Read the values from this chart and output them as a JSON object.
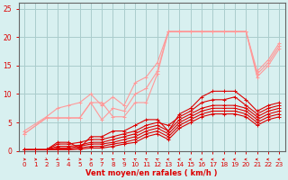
{
  "bg_color": "#d8f0f0",
  "grid_color": "#aacccc",
  "line_color_light": "#ff9999",
  "line_color_dark": "#dd0000",
  "xlabel": "Vent moyen/en rafales ( km/h )",
  "xlabel_color": "#dd0000",
  "tick_color": "#dd0000",
  "axis_color": "#666666",
  "xlim": [
    -0.5,
    23.5
  ],
  "ylim": [
    0,
    26
  ],
  "yticks": [
    0,
    5,
    10,
    15,
    20,
    25
  ],
  "xticks": [
    0,
    1,
    2,
    3,
    4,
    5,
    6,
    7,
    8,
    9,
    10,
    11,
    12,
    13,
    14,
    15,
    16,
    17,
    18,
    19,
    20,
    21,
    22,
    23
  ],
  "light_lines": [
    [
      [
        0,
        3.0
      ],
      [
        2,
        5.8
      ],
      [
        3,
        5.8
      ],
      [
        4,
        5.8
      ],
      [
        5,
        5.8
      ],
      [
        6,
        8.5
      ],
      [
        7,
        8.5
      ],
      [
        8,
        6.0
      ],
      [
        9,
        6.0
      ],
      [
        10,
        8.5
      ],
      [
        11,
        8.5
      ],
      [
        12,
        13.5
      ],
      [
        13,
        21.0
      ],
      [
        14,
        21.0
      ],
      [
        15,
        21.0
      ],
      [
        16,
        21.0
      ],
      [
        17,
        21.0
      ],
      [
        18,
        21.0
      ],
      [
        19,
        21.0
      ],
      [
        20,
        21.0
      ],
      [
        21,
        13.5
      ],
      [
        22,
        15.5
      ],
      [
        23,
        18.5
      ]
    ],
    [
      [
        0,
        3.0
      ],
      [
        2,
        5.8
      ],
      [
        3,
        5.8
      ],
      [
        4,
        5.8
      ],
      [
        5,
        5.8
      ],
      [
        6,
        8.5
      ],
      [
        7,
        5.5
      ],
      [
        8,
        7.5
      ],
      [
        9,
        7.0
      ],
      [
        10,
        10.0
      ],
      [
        11,
        11.0
      ],
      [
        12,
        14.0
      ],
      [
        13,
        21.0
      ],
      [
        14,
        21.0
      ],
      [
        15,
        21.0
      ],
      [
        16,
        21.0
      ],
      [
        17,
        21.0
      ],
      [
        18,
        21.0
      ],
      [
        19,
        21.0
      ],
      [
        20,
        21.0
      ],
      [
        21,
        14.0
      ],
      [
        22,
        16.0
      ],
      [
        23,
        19.0
      ]
    ],
    [
      [
        0,
        3.5
      ],
      [
        2,
        6.0
      ],
      [
        3,
        7.5
      ],
      [
        4,
        8.0
      ],
      [
        5,
        8.5
      ],
      [
        6,
        10.0
      ],
      [
        7,
        8.0
      ],
      [
        8,
        9.5
      ],
      [
        9,
        8.0
      ],
      [
        10,
        12.0
      ],
      [
        11,
        13.0
      ],
      [
        12,
        15.5
      ],
      [
        13,
        21.0
      ],
      [
        14,
        21.0
      ],
      [
        15,
        21.0
      ],
      [
        16,
        21.0
      ],
      [
        17,
        21.0
      ],
      [
        18,
        21.0
      ],
      [
        19,
        21.0
      ],
      [
        20,
        21.0
      ],
      [
        21,
        13.0
      ],
      [
        22,
        15.0
      ],
      [
        23,
        18.0
      ]
    ]
  ],
  "dark_lines": [
    [
      [
        0,
        0.2
      ],
      [
        1,
        0.2
      ],
      [
        2,
        0.2
      ],
      [
        3,
        1.5
      ],
      [
        4,
        1.5
      ],
      [
        5,
        0.5
      ],
      [
        6,
        2.5
      ],
      [
        7,
        2.5
      ],
      [
        8,
        3.5
      ],
      [
        9,
        3.5
      ],
      [
        10,
        4.5
      ],
      [
        11,
        5.5
      ],
      [
        12,
        5.5
      ],
      [
        13,
        3.5
      ],
      [
        14,
        6.5
      ],
      [
        15,
        7.5
      ],
      [
        16,
        9.5
      ],
      [
        17,
        10.5
      ],
      [
        18,
        10.5
      ],
      [
        19,
        10.5
      ],
      [
        20,
        9.0
      ],
      [
        21,
        7.0
      ],
      [
        22,
        8.0
      ],
      [
        23,
        8.5
      ]
    ],
    [
      [
        0,
        0.2
      ],
      [
        1,
        0.2
      ],
      [
        2,
        0.2
      ],
      [
        3,
        1.2
      ],
      [
        4,
        1.2
      ],
      [
        5,
        1.5
      ],
      [
        6,
        2.0
      ],
      [
        7,
        2.0
      ],
      [
        8,
        2.5
      ],
      [
        9,
        3.0
      ],
      [
        10,
        3.5
      ],
      [
        11,
        4.5
      ],
      [
        12,
        5.0
      ],
      [
        13,
        4.5
      ],
      [
        14,
        6.0
      ],
      [
        15,
        7.0
      ],
      [
        16,
        8.5
      ],
      [
        17,
        9.0
      ],
      [
        18,
        9.0
      ],
      [
        19,
        9.5
      ],
      [
        20,
        8.0
      ],
      [
        21,
        6.5
      ],
      [
        22,
        7.5
      ],
      [
        23,
        8.0
      ]
    ],
    [
      [
        0,
        0.2
      ],
      [
        1,
        0.2
      ],
      [
        2,
        0.2
      ],
      [
        3,
        0.8
      ],
      [
        4,
        0.8
      ],
      [
        5,
        1.0
      ],
      [
        6,
        1.5
      ],
      [
        7,
        1.5
      ],
      [
        8,
        2.0
      ],
      [
        9,
        2.5
      ],
      [
        10,
        3.0
      ],
      [
        11,
        4.0
      ],
      [
        12,
        4.5
      ],
      [
        13,
        3.5
      ],
      [
        14,
        5.5
      ],
      [
        15,
        6.5
      ],
      [
        16,
        7.5
      ],
      [
        17,
        8.0
      ],
      [
        18,
        8.0
      ],
      [
        19,
        8.0
      ],
      [
        20,
        7.5
      ],
      [
        21,
        6.0
      ],
      [
        22,
        7.0
      ],
      [
        23,
        7.5
      ]
    ],
    [
      [
        0,
        0.2
      ],
      [
        1,
        0.2
      ],
      [
        2,
        0.2
      ],
      [
        3,
        0.5
      ],
      [
        4,
        0.5
      ],
      [
        5,
        0.8
      ],
      [
        6,
        1.2
      ],
      [
        7,
        1.2
      ],
      [
        8,
        1.5
      ],
      [
        9,
        2.0
      ],
      [
        10,
        2.5
      ],
      [
        11,
        3.5
      ],
      [
        12,
        4.0
      ],
      [
        13,
        3.0
      ],
      [
        14,
        5.0
      ],
      [
        15,
        6.0
      ],
      [
        16,
        7.0
      ],
      [
        17,
        7.5
      ],
      [
        18,
        7.5
      ],
      [
        19,
        7.5
      ],
      [
        20,
        7.0
      ],
      [
        21,
        5.5
      ],
      [
        22,
        6.5
      ],
      [
        23,
        7.0
      ]
    ],
    [
      [
        0,
        0.2
      ],
      [
        1,
        0.2
      ],
      [
        2,
        0.2
      ],
      [
        3,
        0.3
      ],
      [
        4,
        0.3
      ],
      [
        5,
        0.5
      ],
      [
        6,
        0.8
      ],
      [
        7,
        0.8
      ],
      [
        8,
        1.2
      ],
      [
        9,
        1.5
      ],
      [
        10,
        2.0
      ],
      [
        11,
        3.0
      ],
      [
        12,
        3.5
      ],
      [
        13,
        2.5
      ],
      [
        14,
        4.5
      ],
      [
        15,
        5.5
      ],
      [
        16,
        6.5
      ],
      [
        17,
        7.0
      ],
      [
        18,
        7.0
      ],
      [
        19,
        7.0
      ],
      [
        20,
        6.5
      ],
      [
        21,
        5.0
      ],
      [
        22,
        6.0
      ],
      [
        23,
        6.5
      ]
    ],
    [
      [
        0,
        0.2
      ],
      [
        1,
        0.2
      ],
      [
        2,
        0.2
      ],
      [
        3,
        0.2
      ],
      [
        4,
        0.2
      ],
      [
        5,
        0.3
      ],
      [
        6,
        0.5
      ],
      [
        7,
        0.5
      ],
      [
        8,
        0.8
      ],
      [
        9,
        1.2
      ],
      [
        10,
        1.5
      ],
      [
        11,
        2.5
      ],
      [
        12,
        3.0
      ],
      [
        13,
        2.0
      ],
      [
        14,
        4.0
      ],
      [
        15,
        5.0
      ],
      [
        16,
        6.0
      ],
      [
        17,
        6.5
      ],
      [
        18,
        6.5
      ],
      [
        19,
        6.5
      ],
      [
        20,
        6.0
      ],
      [
        21,
        4.5
      ],
      [
        22,
        5.5
      ],
      [
        23,
        6.0
      ]
    ]
  ],
  "arrow_angles": [
    90,
    90,
    135,
    225,
    225,
    90,
    90,
    45,
    315,
    315,
    315,
    315,
    315,
    270,
    270,
    270,
    270,
    270,
    270,
    270,
    270,
    270,
    270,
    270
  ]
}
